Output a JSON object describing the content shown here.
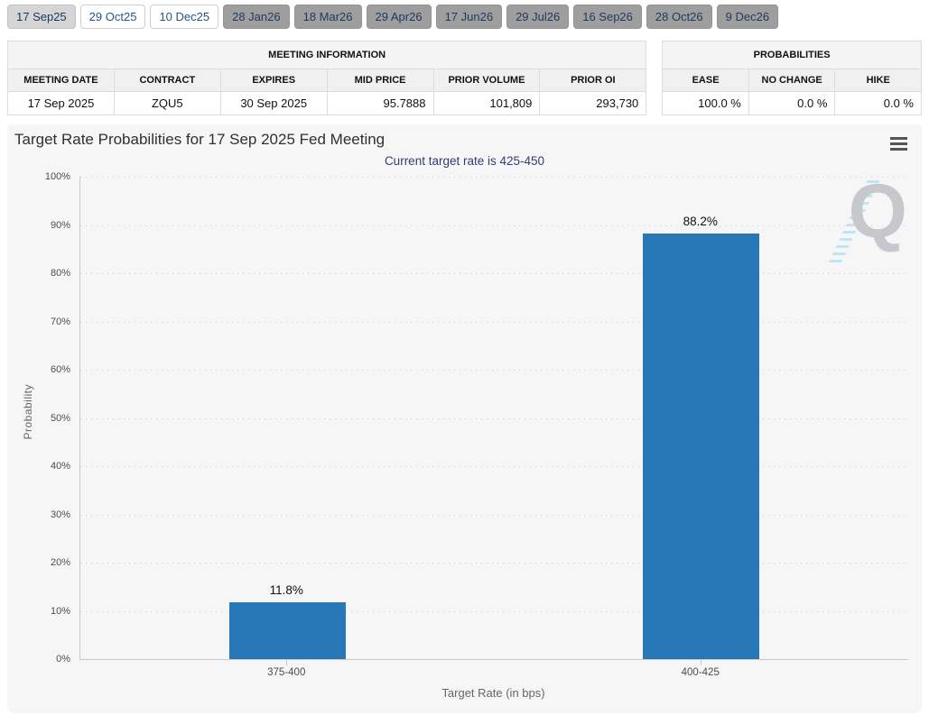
{
  "tabs": {
    "items": [
      {
        "label": "17 Sep25",
        "state": "selected"
      },
      {
        "label": "29 Oct25",
        "state": "link"
      },
      {
        "label": "10 Dec25",
        "state": "link"
      },
      {
        "label": "28 Jan26",
        "state": "future"
      },
      {
        "label": "18 Mar26",
        "state": "future"
      },
      {
        "label": "29 Apr26",
        "state": "future"
      },
      {
        "label": "17 Jun26",
        "state": "future"
      },
      {
        "label": "29 Jul26",
        "state": "future"
      },
      {
        "label": "16 Sep26",
        "state": "future"
      },
      {
        "label": "28 Oct26",
        "state": "future"
      },
      {
        "label": "9 Dec26",
        "state": "future"
      }
    ]
  },
  "meeting_information": {
    "title": "MEETING INFORMATION",
    "columns": [
      "MEETING DATE",
      "CONTRACT",
      "EXPIRES",
      "MID PRICE",
      "PRIOR VOLUME",
      "PRIOR OI"
    ],
    "row": [
      "17 Sep 2025",
      "ZQU5",
      "30 Sep 2025",
      "95.7888",
      "101,809",
      "293,730"
    ]
  },
  "probabilities": {
    "title": "PROBABILITIES",
    "columns": [
      "EASE",
      "NO CHANGE",
      "HIKE"
    ],
    "row": [
      "100.0 %",
      "0.0 %",
      "0.0 %"
    ]
  },
  "chart": {
    "title": "Target Rate Probabilities for 17 Sep 2025 Fed Meeting",
    "menu_icon": "hamburger-menu-icon",
    "watermark_letter": "Q"
  },
  "chart_data": {
    "type": "bar",
    "title": "Target Rate Probabilities for 17 Sep 2025 Fed Meeting",
    "subtitle": "Current target rate is 425-450",
    "categories": [
      "375-400",
      "400-425"
    ],
    "values": [
      11.8,
      88.2
    ],
    "value_labels": [
      "11.8%",
      "88.2%"
    ],
    "xlabel": "Target Rate (in bps)",
    "ylabel": "Probability",
    "ylim": [
      0,
      100
    ],
    "ytick_step": 10,
    "ytick_suffix": "%",
    "grid": true,
    "legend": "none"
  },
  "colors": {
    "bar": "#2878b7",
    "subtitle_text": "#333c73",
    "chart_bg": "#f6f6f7",
    "selected_tab_bg": "#d5d5d5",
    "inactive_tab_bg": "#9e9e9e",
    "link_tab_text": "#235685"
  }
}
